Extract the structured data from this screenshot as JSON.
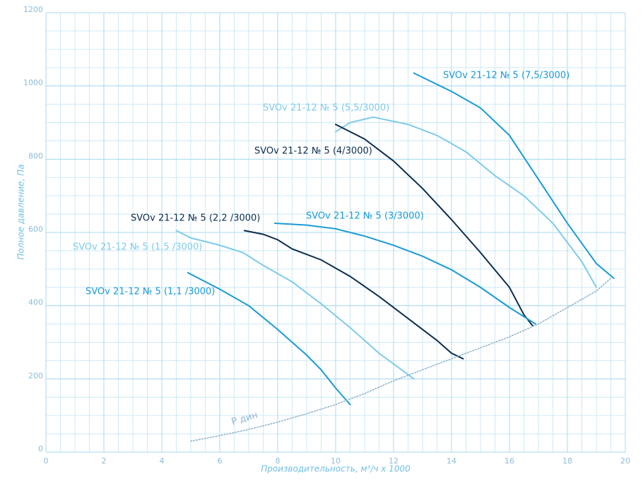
{
  "chart_data": {
    "type": "line",
    "xlabel": "Производительность, м³/ч x 1000",
    "ylabel": "Полное давление, Па",
    "xlim": [
      0,
      20
    ],
    "xticks": [
      0,
      2,
      4,
      6,
      8,
      10,
      12,
      14,
      16,
      18,
      20
    ],
    "ylim": [
      0,
      1200
    ],
    "yticks": [
      0,
      200,
      400,
      600,
      800,
      1000,
      1200
    ],
    "grid": true,
    "series": [
      {
        "name": "SVOv 21-12 № 5 (7,5/3000)",
        "color": "#1a9ad6",
        "x": [
          12.7,
          14,
          15,
          16,
          17,
          18,
          19,
          19.6
        ],
        "values": [
          1035,
          985,
          940,
          865,
          745,
          625,
          515,
          475
        ]
      },
      {
        "name": "SVOv 21-12 № 5 (5,5/3000)",
        "color": "#7fcbea",
        "x": [
          10,
          10.5,
          11.3,
          12.5,
          13.5,
          14.5,
          15.5,
          16.5,
          17.5,
          18.5,
          19
        ],
        "values": [
          875,
          900,
          915,
          895,
          865,
          820,
          755,
          700,
          625,
          520,
          450
        ]
      },
      {
        "name": "SVOv 21-12 № 5 (4/3000)",
        "color": "#0d2d4f",
        "x": [
          10,
          11,
          12,
          13,
          14,
          15,
          16,
          16.5,
          16.8
        ],
        "values": [
          895,
          855,
          795,
          720,
          635,
          545,
          450,
          375,
          345
        ]
      },
      {
        "name": "SVOv 21-12 № 5 (3/3000)",
        "color": "#1a9ad6",
        "x": [
          7.9,
          9,
          10,
          11,
          12,
          13,
          14,
          15,
          16,
          16.9
        ],
        "values": [
          625,
          620,
          610,
          590,
          565,
          535,
          498,
          450,
          395,
          350
        ]
      },
      {
        "name": "SVOv 21-12 № 5 (2,2 /3000)",
        "color": "#0d2d4f",
        "x": [
          6.85,
          7.5,
          8,
          8.5,
          9.5,
          10.5,
          11.5,
          12.5,
          13.5,
          14,
          14.4
        ],
        "values": [
          605,
          595,
          580,
          555,
          525,
          480,
          425,
          365,
          305,
          270,
          255
        ]
      },
      {
        "name": "SVOv 21-12 № 5 (1,5 /3000)",
        "color": "#7fcbea",
        "x": [
          4.5,
          5,
          6,
          6.8,
          7.5,
          8.5,
          9.5,
          10.5,
          11.5,
          12.7
        ],
        "values": [
          605,
          585,
          565,
          545,
          510,
          465,
          405,
          340,
          270,
          200
        ]
      },
      {
        "name": "SVOv 21-12 № 5 (1,1 /3000)",
        "color": "#1a9ad6",
        "x": [
          4.9,
          6,
          7,
          8,
          9,
          9.5,
          10,
          10.5
        ],
        "values": [
          490,
          445,
          400,
          335,
          265,
          225,
          175,
          130
        ]
      },
      {
        "name": "Р дин",
        "color": "#8fb4cc",
        "linestyle": "dotted",
        "x": [
          5,
          6,
          7,
          8,
          9,
          10,
          11,
          12,
          13,
          14,
          15,
          16,
          17,
          18,
          19,
          19.5
        ],
        "values": [
          30,
          45,
          62,
          82,
          105,
          130,
          160,
          195,
          225,
          255,
          285,
          315,
          350,
          395,
          440,
          475
        ]
      }
    ]
  }
}
